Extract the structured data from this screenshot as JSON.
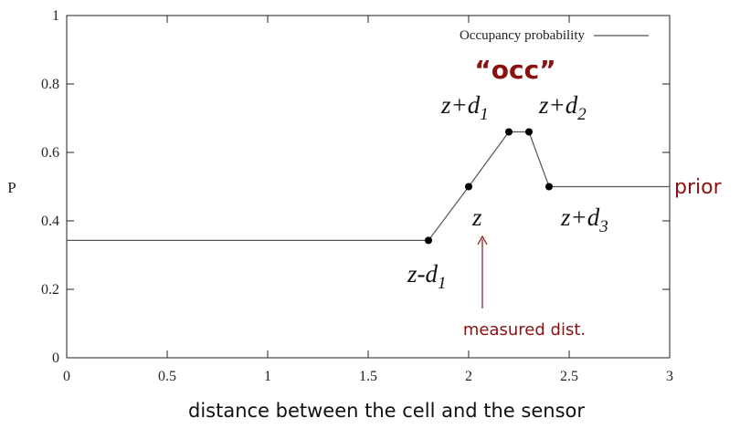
{
  "chart_data": {
    "type": "line",
    "xlabel": "distance between the cell and the sensor",
    "ylabel": "P",
    "xlim": [
      0,
      3
    ],
    "ylim": [
      0,
      1
    ],
    "xticks": [
      "0",
      "0.5",
      "1",
      "1.5",
      "2",
      "2.5",
      "3"
    ],
    "yticks": [
      "0",
      "0.2",
      "0.4",
      "0.6",
      "0.8",
      "1"
    ],
    "grid": false,
    "legend": {
      "position": "top-right",
      "entries": [
        "Occupancy probability"
      ]
    },
    "series": [
      {
        "name": "Occupancy probability",
        "x": [
          0,
          1.8,
          2.0,
          2.2,
          2.3,
          2.4,
          3.0
        ],
        "y": [
          0.343,
          0.343,
          0.5,
          0.66,
          0.66,
          0.5,
          0.5
        ]
      }
    ],
    "key_points": [
      {
        "x": 1.8,
        "y": 0.343,
        "label": "z-d",
        "sub": "1"
      },
      {
        "x": 2.0,
        "y": 0.5,
        "label": "z",
        "sub": ""
      },
      {
        "x": 2.2,
        "y": 0.66,
        "label": "z+d",
        "sub": "1"
      },
      {
        "x": 2.3,
        "y": 0.66,
        "label": "z+d",
        "sub": "2"
      },
      {
        "x": 2.4,
        "y": 0.5,
        "label": "z+d",
        "sub": "3"
      }
    ],
    "annotations": {
      "occ": "“occ”",
      "prior": "prior",
      "measured": "measured dist."
    }
  }
}
